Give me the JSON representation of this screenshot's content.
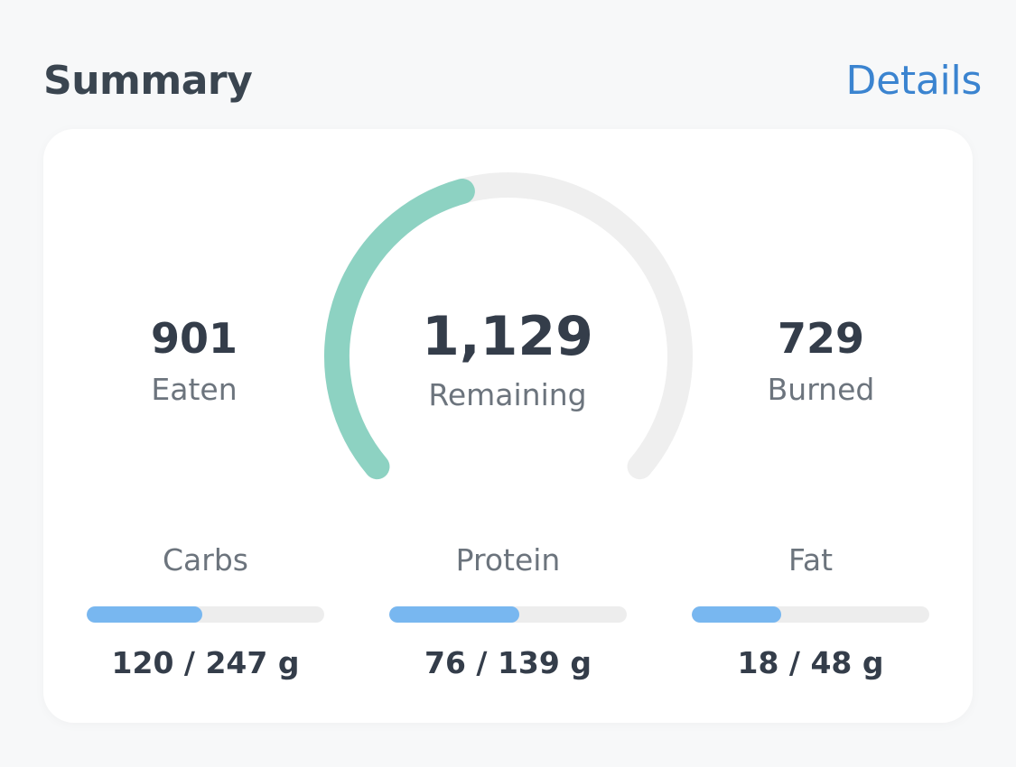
{
  "header": {
    "title": "Summary",
    "details_label": "Details"
  },
  "summary": {
    "eaten": {
      "value": "901",
      "label": "Eaten"
    },
    "remaining": {
      "value": "1,129",
      "label": "Remaining"
    },
    "burned": {
      "value": "729",
      "label": "Burned"
    },
    "gauge_progress": 0.44
  },
  "macros": [
    {
      "label": "Carbs",
      "value": "120 / 247 g",
      "current": 120,
      "goal": 247
    },
    {
      "label": "Protein",
      "value": "76 / 139 g",
      "current": 76,
      "goal": 139
    },
    {
      "label": "Fat",
      "value": "18 / 48 g",
      "current": 18,
      "goal": 48
    }
  ],
  "colors": {
    "title": "#3a4550",
    "link": "#3b84d0",
    "gauge_fill": "#8dd2c2",
    "gauge_track": "#efefef",
    "bar_fill": "#78b7f0",
    "bar_track": "#ededed"
  }
}
